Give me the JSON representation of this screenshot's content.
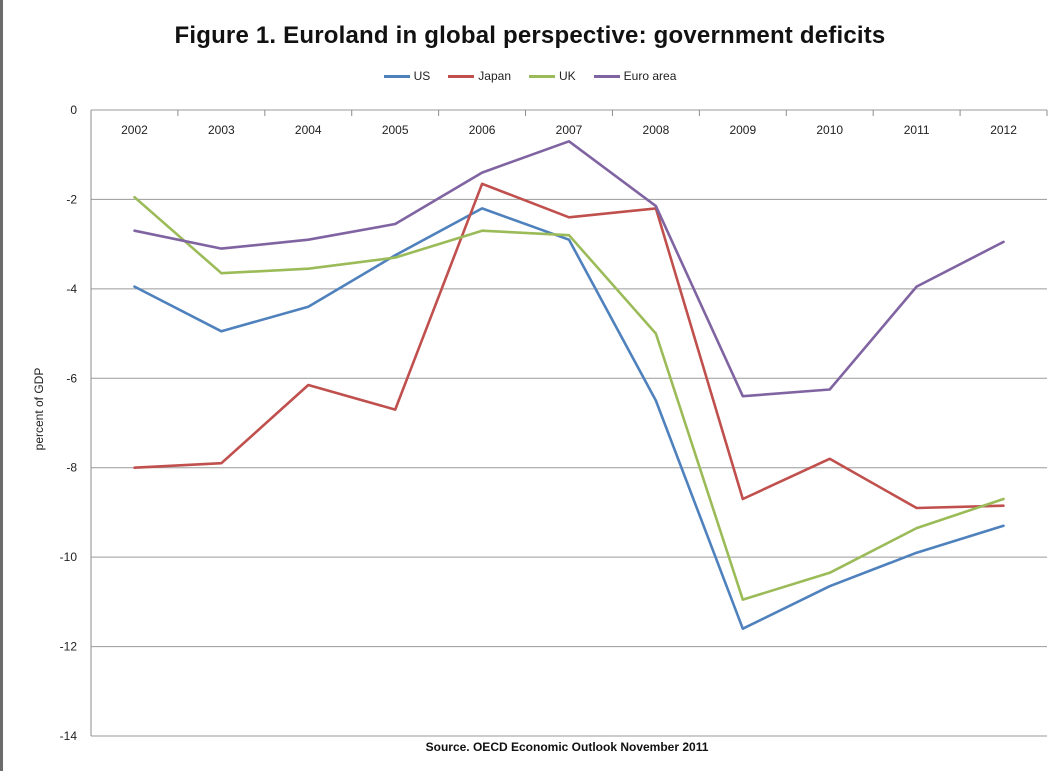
{
  "chart_data": {
    "type": "line",
    "title": "Figure 1. Euroland in global perspective: government deficits",
    "xlabel": "",
    "ylabel": "percent of GDP",
    "source": "Source. OECD Economic Outlook November 2011",
    "ylim": [
      -14,
      0
    ],
    "yticks": [
      0,
      -2,
      -4,
      -6,
      -8,
      -10,
      -12,
      -14
    ],
    "categories": [
      "2002",
      "2003",
      "2004",
      "2005",
      "2006",
      "2007",
      "2008",
      "2009",
      "2010",
      "2011",
      "2012"
    ],
    "grid": true,
    "legend_position": "top",
    "series": [
      {
        "name": "US",
        "color": "#4f81bd",
        "values": [
          -3.95,
          -4.95,
          -4.4,
          -3.25,
          -2.2,
          -2.9,
          -6.5,
          -11.6,
          -10.65,
          -9.9,
          -9.3
        ]
      },
      {
        "name": "Japan",
        "color": "#c0504d",
        "values": [
          -8.0,
          -7.9,
          -6.15,
          -6.7,
          -1.65,
          -2.4,
          -2.2,
          -8.7,
          -7.8,
          -8.9,
          -8.85
        ]
      },
      {
        "name": "UK",
        "color": "#9bbb59",
        "values": [
          -1.95,
          -3.65,
          -3.55,
          -3.3,
          -2.7,
          -2.8,
          -5.0,
          -10.95,
          -10.35,
          -9.35,
          -8.7
        ]
      },
      {
        "name": "Euro area",
        "color": "#8064a2",
        "values": [
          -2.7,
          -3.1,
          -2.9,
          -2.55,
          -1.4,
          -0.7,
          -2.15,
          -6.4,
          -6.25,
          -3.95,
          -2.95
        ]
      }
    ]
  }
}
